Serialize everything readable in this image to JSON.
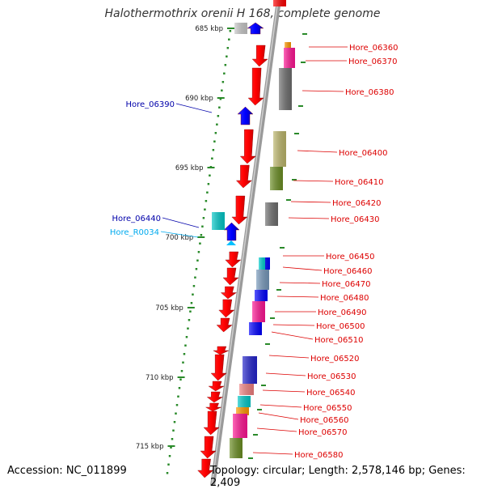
{
  "title": "Halothermothrix orenii H 168, complete genome",
  "accession": "Accession: NC_011899",
  "summary": "Topology: circular; Length: 2,578,146 bp; Genes: 2,409",
  "colors": {
    "backbone": "#808080",
    "ruler_dots": "#2a8a2a",
    "forward_gene": "#ff0000",
    "reverse_gene": "#0000ff",
    "rna_gene": "#00c0ff",
    "label_red": "#dd0000",
    "label_blue": "#0000aa",
    "label_cyan": "#00aaee"
  },
  "ruler_ticks": [
    {
      "label": "685 kbp"
    },
    {
      "label": "690 kbp"
    },
    {
      "label": "695 kbp"
    },
    {
      "label": "700 kbp"
    },
    {
      "label": "705 kbp"
    },
    {
      "label": "710 kbp"
    },
    {
      "label": "715 kbp"
    }
  ],
  "genes": [
    {
      "label": "Hore_06360",
      "strand": "+"
    },
    {
      "label": "Hore_06370",
      "strand": "+"
    },
    {
      "label": "Hore_06380",
      "strand": "+"
    },
    {
      "label": "Hore_06390",
      "strand": "-"
    },
    {
      "label": "Hore_06400",
      "strand": "+"
    },
    {
      "label": "Hore_06410",
      "strand": "+"
    },
    {
      "label": "Hore_06420",
      "strand": "+"
    },
    {
      "label": "Hore_06430",
      "strand": "+"
    },
    {
      "label": "Hore_06440",
      "strand": "-"
    },
    {
      "label": "Hore_R0034",
      "strand": "-"
    },
    {
      "label": "Hore_06450",
      "strand": "+"
    },
    {
      "label": "Hore_06460",
      "strand": "+"
    },
    {
      "label": "Hore_06470",
      "strand": "+"
    },
    {
      "label": "Hore_06480",
      "strand": "+"
    },
    {
      "label": "Hore_06490",
      "strand": "+"
    },
    {
      "label": "Hore_06500",
      "strand": "+"
    },
    {
      "label": "Hore_06510",
      "strand": "+"
    },
    {
      "label": "Hore_06520",
      "strand": "+"
    },
    {
      "label": "Hore_06530",
      "strand": "+"
    },
    {
      "label": "Hore_06540",
      "strand": "+"
    },
    {
      "label": "Hore_06550",
      "strand": "+"
    },
    {
      "label": "Hore_06560",
      "strand": "+"
    },
    {
      "label": "Hore_06570",
      "strand": "+"
    },
    {
      "label": "Hore_06580",
      "strand": "+"
    }
  ]
}
